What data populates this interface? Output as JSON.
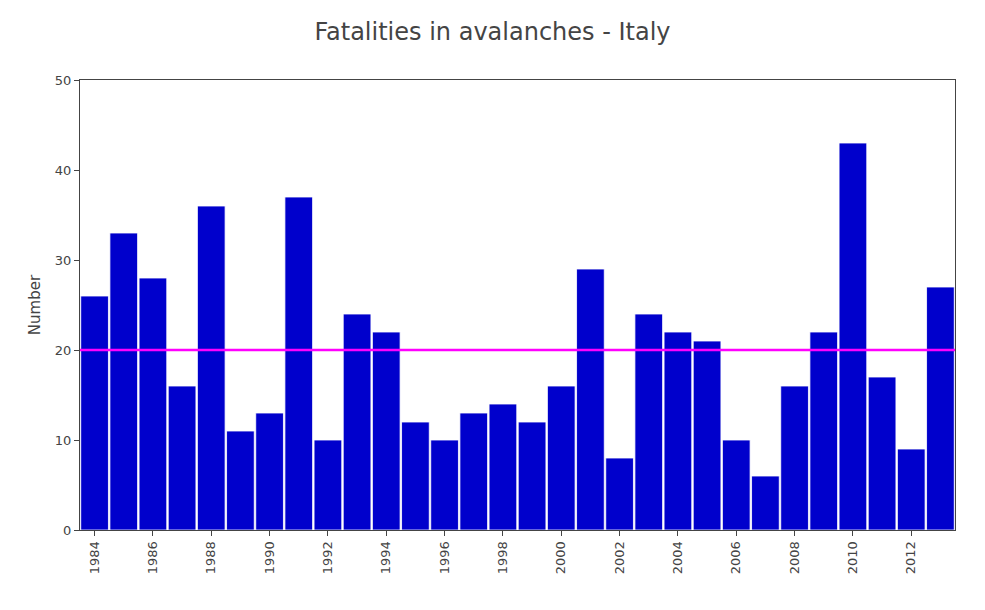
{
  "chart_data": {
    "type": "bar",
    "title": "Fatalities in avalanches - Italy",
    "ylabel": "Number",
    "categories": [
      "1984",
      null,
      "1986",
      null,
      "1988",
      null,
      "1990",
      null,
      "1992",
      null,
      "1994",
      null,
      "1996",
      null,
      "1998",
      null,
      "2000",
      null,
      "2002",
      null,
      "2004",
      null,
      "2006",
      null,
      "2008",
      null,
      "2010",
      null,
      "2012",
      null
    ],
    "values": [
      26,
      33,
      28,
      16,
      36,
      11,
      13,
      37,
      10,
      24,
      22,
      12,
      10,
      13,
      14,
      12,
      16,
      29,
      8,
      24,
      22,
      21,
      10,
      6,
      16,
      22,
      43,
      17,
      9,
      27
    ],
    "color": "#0000CC",
    "mean_line": {
      "value": 20,
      "color": "#FF00FF"
    },
    "ylim": [
      0,
      50
    ],
    "yticks": [
      0,
      10,
      20,
      30,
      40,
      50
    ],
    "grid": false
  }
}
